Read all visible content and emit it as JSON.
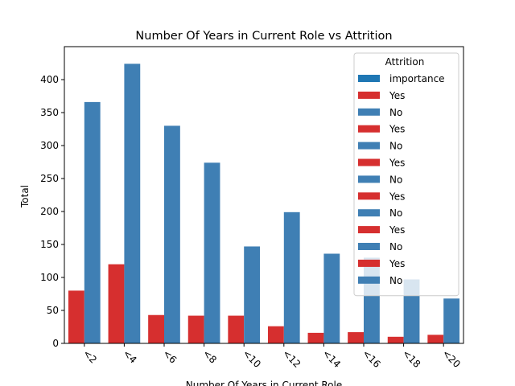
{
  "chart_data": {
    "type": "bar",
    "title": "Number Of Years in Current Role vs Attrition",
    "xlabel": "Number Of Years in Current Role",
    "ylabel": "Total",
    "categories": [
      "<2",
      "<4",
      "<6",
      "<8",
      "<10",
      "<12",
      "<14",
      "<16",
      "<18",
      "<20"
    ],
    "series": [
      {
        "name": "Yes",
        "color": "#d62f2f",
        "values": [
          80,
          120,
          43,
          42,
          42,
          26,
          16,
          17,
          10,
          13
        ]
      },
      {
        "name": "No",
        "color": "#3f7fb4",
        "values": [
          366,
          424,
          330,
          274,
          147,
          199,
          136,
          130,
          97,
          68
        ]
      }
    ],
    "ylim": [
      0,
      450
    ],
    "yticks": [
      0,
      50,
      100,
      150,
      200,
      250,
      300,
      350,
      400
    ],
    "grid": false,
    "legend": {
      "title": "Attrition",
      "placement": "top-right",
      "entries": [
        {
          "label": "importance",
          "color": "#1f77b4"
        },
        {
          "label": "Yes",
          "color": "#d62f2f"
        },
        {
          "label": "No",
          "color": "#3f7fb4"
        },
        {
          "label": "Yes",
          "color": "#d62f2f"
        },
        {
          "label": "No",
          "color": "#3f7fb4"
        },
        {
          "label": "Yes",
          "color": "#d62f2f"
        },
        {
          "label": "No",
          "color": "#3f7fb4"
        },
        {
          "label": "Yes",
          "color": "#d62f2f"
        },
        {
          "label": "No",
          "color": "#3f7fb4"
        },
        {
          "label": "Yes",
          "color": "#d62f2f"
        },
        {
          "label": "No",
          "color": "#3f7fb4"
        },
        {
          "label": "Yes",
          "color": "#d62f2f"
        },
        {
          "label": "No",
          "color": "#3f7fb4"
        }
      ]
    }
  }
}
